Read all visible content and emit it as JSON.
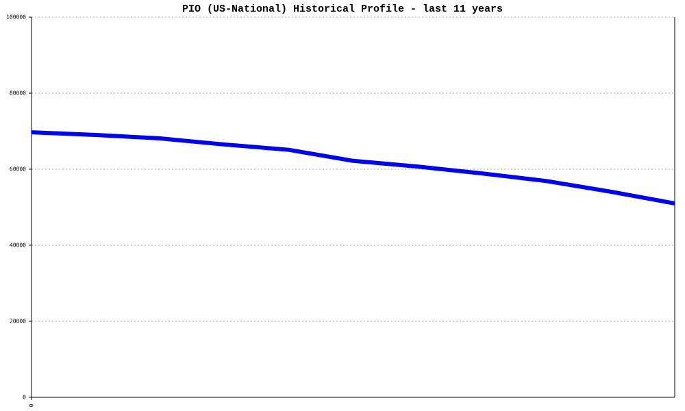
{
  "chart_data": {
    "type": "line",
    "title": "PIO (US-National) Historical Profile - last 11 years",
    "categories": [
      "0",
      null,
      null,
      null,
      null,
      null,
      null,
      null,
      null,
      null,
      null
    ],
    "values": [
      69700,
      69000,
      68100,
      66500,
      65100,
      62200,
      60700,
      58900,
      56900,
      54100,
      51000
    ],
    "color": "#0000ff",
    "ylim": [
      0,
      100000
    ],
    "yticks": [
      0,
      20000,
      40000,
      60000,
      80000,
      100000
    ],
    "grid": true
  }
}
